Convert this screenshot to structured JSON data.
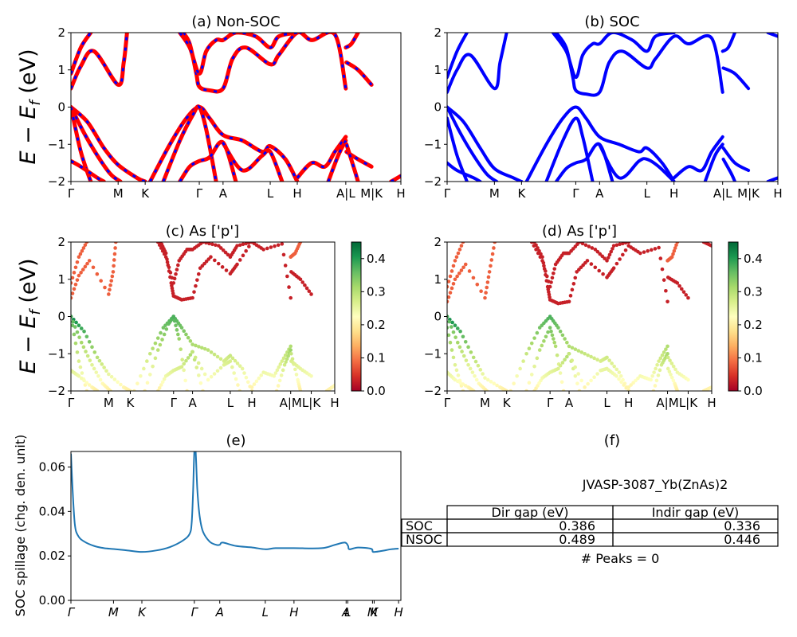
{
  "figure": {
    "material_label": "JVASP-3087_Yb(ZnAs)2",
    "peaks_label": "# Peaks = 0"
  },
  "chart_data": [
    {
      "id": "a",
      "type": "line",
      "title": "(a) Non-SOC",
      "ylabel": "E − E_f (eV)",
      "ylim": [
        -2,
        2
      ],
      "yticks": [
        -2,
        -1,
        0,
        1,
        2
      ],
      "kpath_labels": [
        "Γ",
        "M",
        "K",
        "Γ",
        "A",
        "L",
        "H",
        "A|L",
        "M|K",
        "H"
      ],
      "kpath_positions": [
        0,
        0.143,
        0.225,
        0.389,
        0.461,
        0.604,
        0.686,
        0.833,
        0.911,
        1.0
      ],
      "line_style": "red solid with blue dashed overlay",
      "colors": {
        "primary": "#ff0000",
        "overlay": "#0000ff"
      },
      "series": [
        {
          "name": "cb1",
          "x": [
            0,
            0.03,
            0.07,
            0.143,
            0.16,
            0.17
          ],
          "y": [
            0.5,
            1.1,
            1.5,
            0.6,
            1.2,
            2.0
          ]
        },
        {
          "name": "cb2",
          "x": [
            0,
            0.03,
            0.06
          ],
          "y": [
            0.9,
            1.6,
            2.0
          ]
        },
        {
          "name": "cb3",
          "x": [
            0.34,
            0.36,
            0.38,
            0.389,
            0.42,
            0.461,
            0.49,
            0.53,
            0.604,
            0.63,
            0.686,
            0.73,
            0.8,
            0.833
          ],
          "y": [
            2.0,
            1.7,
            0.9,
            0.55,
            0.45,
            0.5,
            1.3,
            1.6,
            1.15,
            1.4,
            2.0,
            1.8,
            1.95,
            0.5
          ]
        },
        {
          "name": "cb4",
          "x": [
            0.33,
            0.36,
            0.389,
            0.41,
            0.44,
            0.461,
            0.5,
            0.56,
            0.604,
            0.63,
            0.686
          ],
          "y": [
            2.0,
            1.6,
            0.9,
            1.5,
            1.8,
            1.8,
            2.0,
            1.9,
            1.6,
            1.9,
            2.0
          ]
        },
        {
          "name": "cb5",
          "x": [
            0.835,
            0.87,
            0.911
          ],
          "y": [
            1.2,
            1.0,
            0.6
          ]
        },
        {
          "name": "cb6",
          "x": [
            0.833,
            0.85,
            0.87
          ],
          "y": [
            1.6,
            1.7,
            2.0
          ]
        },
        {
          "name": "vb1",
          "x": [
            0,
            0.05,
            0.1,
            0.143,
            0.2,
            0.225
          ],
          "y": [
            0,
            -0.4,
            -1.1,
            -1.55,
            -1.9,
            -2.0
          ]
        },
        {
          "name": "vb2",
          "x": [
            0,
            0.04,
            0.08,
            0.12,
            0.15
          ],
          "y": [
            0,
            -0.7,
            -1.3,
            -1.8,
            -2.0
          ]
        },
        {
          "name": "vb3",
          "x": [
            0,
            0.03,
            0.06
          ],
          "y": [
            0,
            -1.2,
            -2.0
          ]
        },
        {
          "name": "vb4",
          "x": [
            0,
            0.03,
            0.08,
            0.1
          ],
          "y": [
            -1.45,
            -1.6,
            -1.9,
            -2.0
          ]
        },
        {
          "name": "vb5",
          "x": [
            0.24,
            0.3,
            0.35,
            0.389,
            0.42,
            0.461,
            0.52,
            0.58,
            0.604,
            0.65,
            0.686
          ],
          "y": [
            -2.0,
            -1.0,
            -0.3,
            0.0,
            -0.3,
            -0.75,
            -0.9,
            -1.2,
            -1.05,
            -1.4,
            -2.0
          ]
        },
        {
          "name": "vb6",
          "x": [
            0.28,
            0.33,
            0.37,
            0.389,
            0.41,
            0.44
          ],
          "y": [
            -2.0,
            -0.9,
            -0.2,
            0.0,
            -0.6,
            -2.0
          ]
        },
        {
          "name": "vb7",
          "x": [
            0.33,
            0.36,
            0.389,
            0.42,
            0.461,
            0.5
          ],
          "y": [
            -2.0,
            -1.6,
            -1.45,
            -1.35,
            -0.95,
            -2.0
          ]
        },
        {
          "name": "vb8",
          "x": [
            0.46,
            0.52,
            0.58,
            0.604,
            0.64
          ],
          "y": [
            -0.95,
            -1.7,
            -1.3,
            -1.2,
            -2.0
          ]
        },
        {
          "name": "vb9",
          "x": [
            0.686,
            0.73,
            0.77,
            0.8,
            0.833
          ],
          "y": [
            -1.9,
            -1.5,
            -1.6,
            -1.2,
            -0.8
          ]
        },
        {
          "name": "vb10",
          "x": [
            0.78,
            0.81,
            0.833
          ],
          "y": [
            -2.0,
            -1.3,
            -0.9
          ]
        },
        {
          "name": "vb11",
          "x": [
            0.835,
            0.87,
            0.911
          ],
          "y": [
            -1.2,
            -1.4,
            -1.6
          ]
        },
        {
          "name": "vb12",
          "x": [
            0.835,
            0.86,
            0.87
          ],
          "y": [
            -1.0,
            -1.7,
            -2.0
          ]
        },
        {
          "name": "vb13",
          "x": [
            0.97,
            1.0
          ],
          "y": [
            -2.0,
            -1.85
          ]
        }
      ]
    },
    {
      "id": "b",
      "type": "line",
      "title": "(b) SOC",
      "ylim": [
        -2,
        2
      ],
      "yticks": [
        -2,
        -1,
        0,
        1,
        2
      ],
      "kpath_labels": [
        "Γ",
        "M",
        "K",
        "Γ",
        "A",
        "L",
        "H",
        "A|L",
        "M|K",
        "H"
      ],
      "kpath_positions": [
        0,
        0.143,
        0.225,
        0.389,
        0.461,
        0.604,
        0.686,
        0.833,
        0.911,
        1.0
      ],
      "colors": {
        "primary": "#0000ff"
      },
      "series": [
        {
          "name": "cb1",
          "x": [
            0,
            0.03,
            0.07,
            0.143,
            0.16,
            0.18
          ],
          "y": [
            0.4,
            1.0,
            1.4,
            0.5,
            1.2,
            2.0
          ]
        },
        {
          "name": "cb2",
          "x": [
            0,
            0.03,
            0.06
          ],
          "y": [
            0.8,
            1.5,
            2.0
          ]
        },
        {
          "name": "cb3",
          "x": [
            0.33,
            0.36,
            0.38,
            0.389,
            0.42,
            0.461,
            0.49,
            0.53,
            0.604,
            0.63,
            0.686,
            0.73,
            0.8,
            0.833
          ],
          "y": [
            2.0,
            1.6,
            0.8,
            0.45,
            0.35,
            0.4,
            1.2,
            1.5,
            1.05,
            1.3,
            1.9,
            1.7,
            1.85,
            0.4
          ]
        },
        {
          "name": "cb4",
          "x": [
            0.32,
            0.36,
            0.389,
            0.41,
            0.44,
            0.461,
            0.5,
            0.56,
            0.604,
            0.63,
            0.686
          ],
          "y": [
            2.0,
            1.5,
            0.8,
            1.4,
            1.7,
            1.7,
            2.0,
            1.8,
            1.5,
            1.9,
            2.0
          ]
        },
        {
          "name": "cb5",
          "x": [
            0.835,
            0.87,
            0.911
          ],
          "y": [
            1.05,
            0.9,
            0.5
          ]
        },
        {
          "name": "cb6",
          "x": [
            0.833,
            0.85,
            0.87
          ],
          "y": [
            1.5,
            1.6,
            2.0
          ]
        },
        {
          "name": "vb1",
          "x": [
            0,
            0.05,
            0.1,
            0.143,
            0.2,
            0.225
          ],
          "y": [
            0,
            -0.4,
            -1.1,
            -1.65,
            -1.9,
            -2.0
          ]
        },
        {
          "name": "vb2",
          "x": [
            0,
            0.04,
            0.08,
            0.12,
            0.15
          ],
          "y": [
            0,
            -0.7,
            -1.3,
            -1.8,
            -2.0
          ]
        },
        {
          "name": "vb3",
          "x": [
            0,
            0.03,
            0.06
          ],
          "y": [
            -0.3,
            -1.3,
            -2.0
          ]
        },
        {
          "name": "vb4",
          "x": [
            0,
            0.03,
            0.08,
            0.1
          ],
          "y": [
            -1.5,
            -1.7,
            -1.9,
            -2.0
          ]
        },
        {
          "name": "vb5",
          "x": [
            0.24,
            0.3,
            0.35,
            0.389,
            0.42,
            0.461,
            0.52,
            0.58,
            0.604,
            0.65,
            0.686
          ],
          "y": [
            -2.0,
            -1.0,
            -0.3,
            0.0,
            -0.3,
            -0.8,
            -1.0,
            -1.2,
            -1.1,
            -1.5,
            -2.0
          ]
        },
        {
          "name": "vb6",
          "x": [
            0.3,
            0.35,
            0.389,
            0.41,
            0.44
          ],
          "y": [
            -2.0,
            -0.9,
            -0.3,
            -0.8,
            -2.0
          ]
        },
        {
          "name": "vb7",
          "x": [
            0.33,
            0.36,
            0.389,
            0.42,
            0.461,
            0.5
          ],
          "y": [
            -2.0,
            -1.65,
            -1.5,
            -1.4,
            -1.0,
            -2.0
          ]
        },
        {
          "name": "vb8",
          "x": [
            0.46,
            0.52,
            0.58,
            0.604,
            0.64,
            0.686
          ],
          "y": [
            -1.0,
            -1.9,
            -1.45,
            -1.4,
            -1.6,
            -2.0
          ]
        },
        {
          "name": "vb9",
          "x": [
            0.686,
            0.73,
            0.77,
            0.8,
            0.833
          ],
          "y": [
            -1.9,
            -1.6,
            -1.7,
            -1.2,
            -0.8
          ]
        },
        {
          "name": "vb10",
          "x": [
            0.78,
            0.81,
            0.833
          ],
          "y": [
            -2.0,
            -1.3,
            -1.0
          ]
        },
        {
          "name": "vb11",
          "x": [
            0.835,
            0.87,
            0.911
          ],
          "y": [
            -1.1,
            -1.5,
            -1.7
          ]
        },
        {
          "name": "vb12",
          "x": [
            0.835,
            0.86,
            0.87
          ],
          "y": [
            -1.4,
            -1.8,
            -2.0
          ]
        },
        {
          "name": "vb13",
          "x": [
            0.97,
            1.0
          ],
          "y": [
            -2.0,
            -1.9
          ]
        },
        {
          "name": "vb14",
          "x": [
            0.97,
            1.0
          ],
          "y": [
            2.0,
            1.9
          ]
        }
      ]
    },
    {
      "id": "c",
      "type": "scatter",
      "title": "(c)  As ['p']",
      "ylabel": "E − E_f (eV)",
      "ylim": [
        -2,
        2
      ],
      "yticks": [
        -2,
        -1,
        0,
        1,
        2
      ],
      "kpath_labels": [
        "Γ",
        "M",
        "K",
        "Γ",
        "A",
        "L",
        "H",
        "A|M",
        "L|K",
        "H"
      ],
      "kpath_positions": [
        0,
        0.143,
        0.225,
        0.389,
        0.461,
        0.604,
        0.686,
        0.833,
        0.911,
        1.0
      ],
      "colorbar": {
        "colormap": "RdYlGn",
        "range": [
          0,
          0.45
        ],
        "ticks": [
          0.0,
          0.1,
          0.2,
          0.3,
          0.4
        ]
      },
      "note": "band points colored by As p-orbital projection; conduction bands ~0.0-0.1, valence bands ~0.25-0.45"
    },
    {
      "id": "d",
      "type": "scatter",
      "title": "(d) As ['p']",
      "ylim": [
        -2,
        2
      ],
      "yticks": [
        -2,
        -1,
        0,
        1,
        2
      ],
      "kpath_labels": [
        "Γ",
        "M",
        "K",
        "Γ",
        "A",
        "L",
        "H",
        "A|M",
        "L|K",
        "H"
      ],
      "kpath_positions": [
        0,
        0.143,
        0.225,
        0.389,
        0.461,
        0.604,
        0.686,
        0.833,
        0.911,
        1.0
      ],
      "colorbar": {
        "colormap": "RdYlGn",
        "range": [
          0,
          0.45
        ],
        "ticks": [
          0.0,
          0.1,
          0.2,
          0.3,
          0.4
        ]
      }
    },
    {
      "id": "e",
      "type": "line",
      "title": "(e)",
      "ylabel": "SOC spillage (chg. den. unit)",
      "ylim": [
        0,
        0.067
      ],
      "yticks": [
        0.0,
        0.02,
        0.04,
        0.06
      ],
      "ytick_labels": [
        "0.00",
        "0.02",
        "0.04",
        "0.06"
      ],
      "kpath_labels": [
        "Γ",
        "M",
        "K",
        "Γ",
        "A",
        "L",
        "H",
        "A",
        "L",
        "M",
        "K",
        "H"
      ],
      "kpath_positions": [
        0,
        0.129,
        0.215,
        0.374,
        0.451,
        0.589,
        0.676,
        0.834,
        0.839,
        0.914,
        0.919,
        0.993
      ],
      "color": "#1f77b4",
      "x": [
        0,
        0.005,
        0.012,
        0.022,
        0.04,
        0.07,
        0.1,
        0.129,
        0.17,
        0.215,
        0.26,
        0.3,
        0.34,
        0.36,
        0.366,
        0.37,
        0.374,
        0.378,
        0.383,
        0.39,
        0.4,
        0.42,
        0.44,
        0.451,
        0.46,
        0.5,
        0.55,
        0.589,
        0.62,
        0.676,
        0.76,
        0.8,
        0.83,
        0.84,
        0.844,
        0.87,
        0.91,
        0.916,
        0.94,
        0.97,
        0.993
      ],
      "y": [
        0.066,
        0.05,
        0.034,
        0.029,
        0.0265,
        0.0245,
        0.0235,
        0.0231,
        0.0225,
        0.0218,
        0.0225,
        0.024,
        0.027,
        0.03,
        0.035,
        0.048,
        0.067,
        0.067,
        0.05,
        0.038,
        0.031,
        0.0265,
        0.025,
        0.025,
        0.026,
        0.0245,
        0.0238,
        0.023,
        0.0235,
        0.0235,
        0.0235,
        0.025,
        0.026,
        0.0245,
        0.023,
        0.0238,
        0.0232,
        0.0218,
        0.0222,
        0.023,
        0.0233
      ]
    },
    {
      "id": "f",
      "type": "table",
      "title": "(f)",
      "columns": [
        "",
        "Dir gap (eV)",
        "Indir gap (eV)"
      ],
      "rows": [
        [
          "SOC",
          "0.386",
          "0.336"
        ],
        [
          "NSOC",
          "0.489",
          "0.446"
        ]
      ]
    }
  ]
}
